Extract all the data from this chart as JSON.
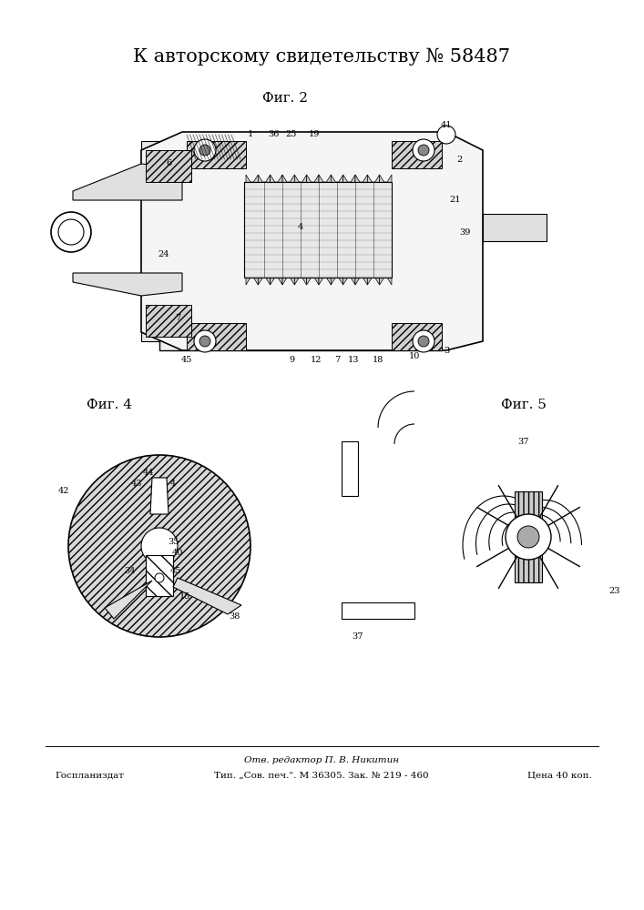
{
  "title": "К авторскому свидетельству № 58487",
  "fig2_label": "Фиг. 2",
  "fig4_label": "Фиг. 4",
  "fig5_label": "Фиг. 5",
  "footer_line1": "Отв. редактор П. В. Никитин",
  "footer_line2": "Тип. „Сов. печ.\". М 36305. Зак. № 219 - 460",
  "footer_left": "Госпланиздат",
  "footer_right": "Цена 40 коп.",
  "bg_color": "#ffffff",
  "line_color": "#000000",
  "hatch_color": "#555555"
}
